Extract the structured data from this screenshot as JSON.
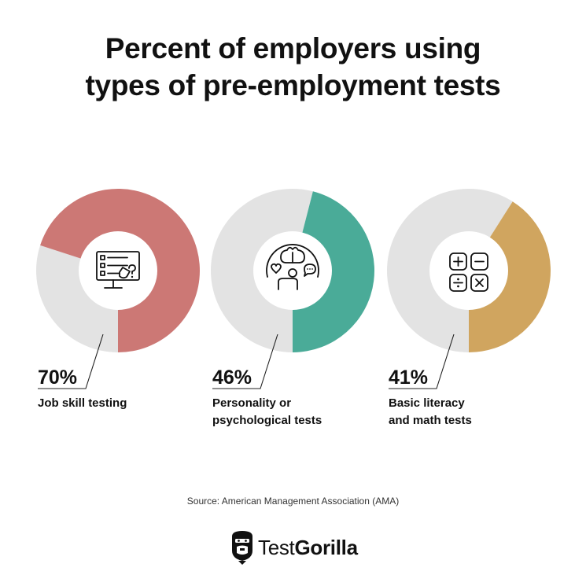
{
  "title": {
    "line1": "Percent of employers using",
    "line2": "types of pre-employment tests"
  },
  "chart_data": {
    "type": "pie",
    "style": "donut",
    "unit": "%",
    "items": [
      {
        "value": 70,
        "label": "70%",
        "category_lines": [
          "Job skill testing"
        ],
        "color": "#cc7875",
        "icon": "computer-test-icon"
      },
      {
        "value": 46,
        "label": "46%",
        "category_lines": [
          "Personality or",
          "psychological tests"
        ],
        "color": "#4aab98",
        "icon": "brain-personality-icon"
      },
      {
        "value": 41,
        "label": "41%",
        "category_lines": [
          "Basic literacy",
          "and math tests"
        ],
        "color": "#d0a55f",
        "icon": "math-operators-icon"
      }
    ],
    "remainder_color": "#e3e3e3"
  },
  "source": "Source: American Management Association (AMA)",
  "brand": {
    "name_light": "Test",
    "name_bold": "Gorilla",
    "logo_icon": "gorilla-logo-icon"
  }
}
